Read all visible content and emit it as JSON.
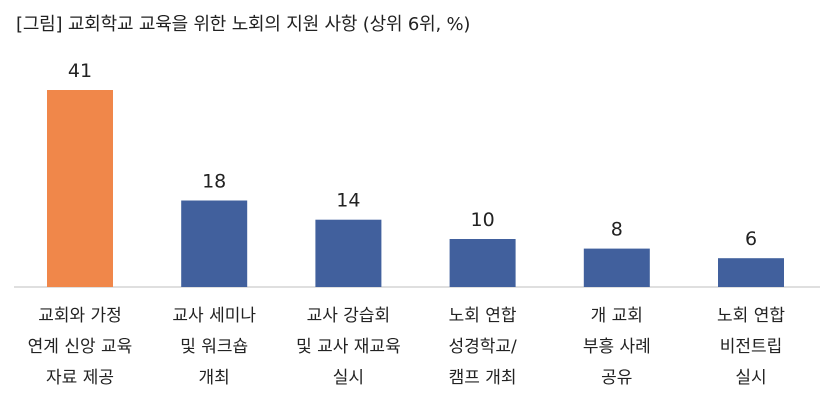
{
  "chart_data": {
    "type": "bar",
    "title": "[그림] 교회학교 교육을 위한 노회의 지원 사항 (상위 6위, %)",
    "categories": [
      [
        "교회와 가정",
        "연계 신앙 교육",
        "자료 제공"
      ],
      [
        "교사 세미나",
        "및 워크숍",
        "개최"
      ],
      [
        "교사 강습회",
        "및 교사 재교육",
        "실시"
      ],
      [
        "노회 연합",
        "성경학교/",
        "캠프 개최"
      ],
      [
        "개 교회",
        "부흥 사례",
        "공유"
      ],
      [
        "노회 연합",
        "비전트립",
        "실시"
      ]
    ],
    "values": [
      41,
      18,
      14,
      10,
      8,
      6
    ],
    "ylim": [
      0,
      41
    ],
    "grid": false,
    "colors": {
      "highlight": "#F0874A",
      "default": "#41609D",
      "axis": "#bfbfbf"
    },
    "highlight_index": 0
  }
}
